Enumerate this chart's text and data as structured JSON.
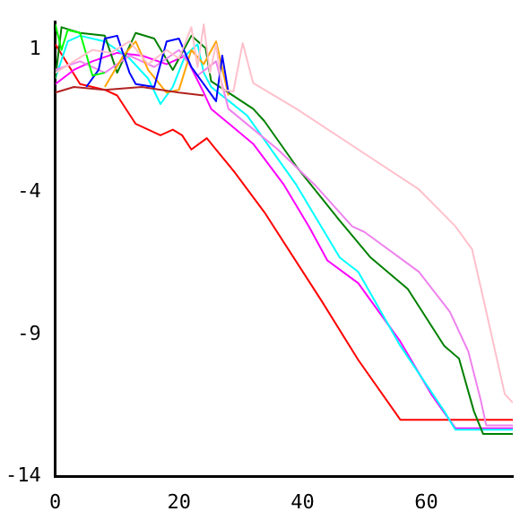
{
  "chart_data": {
    "type": "line",
    "xlim": [
      0,
      74
    ],
    "ylim": [
      -14,
      2
    ],
    "xticks": [
      0,
      20,
      40,
      60
    ],
    "yticks": [
      1,
      -4,
      -9,
      -14
    ],
    "grid": false,
    "legend": false,
    "marker": "none",
    "line_style": "solid",
    "series": [
      {
        "color": "#ffc0cb",
        "x": [
          0,
          3,
          6,
          9,
          12,
          15,
          18,
          20,
          22,
          23,
          24,
          25,
          26,
          27,
          28.8,
          30.3,
          32,
          39,
          49,
          58.8,
          64.7,
          67.4,
          69.7,
          72.7,
          74
        ],
        "values": [
          0.2,
          0.6,
          1.0,
          0.9,
          1.3,
          0.5,
          1.0,
          0.7,
          1.8,
          0.4,
          1.9,
          0.2,
          1.2,
          -0.4,
          -0.46,
          1.24,
          -0.16,
          -1.07,
          -2.5,
          -3.9,
          -5.2,
          -6.0,
          -8.2,
          -11.1,
          -11.4
        ]
      },
      {
        "color": "#00ff00",
        "x": [
          0,
          1,
          2,
          4,
          6,
          8
        ],
        "values": [
          1.9,
          1.0,
          1.7,
          1.6,
          0.1,
          0.2
        ]
      },
      {
        "color": "#b22222",
        "x": [
          0,
          3,
          8,
          14,
          20,
          24
        ],
        "values": [
          -0.5,
          -0.3,
          -0.4,
          -0.3,
          -0.5,
          -0.6
        ]
      },
      {
        "color": "#0000ff",
        "x": [
          5,
          7,
          8,
          10,
          12,
          13,
          16,
          18,
          20,
          22,
          26,
          27,
          28
        ],
        "values": [
          -0.3,
          0.3,
          1.4,
          1.5,
          0.2,
          -0.2,
          -0.3,
          1.3,
          1.4,
          0.4,
          -0.8,
          0.8,
          -0.5
        ]
      },
      {
        "color": "#ffa500",
        "x": [
          8,
          11,
          13,
          15,
          18,
          20,
          22,
          24,
          26,
          28
        ],
        "values": [
          -0.3,
          0.8,
          1.3,
          0.3,
          -0.5,
          -0.4,
          1.0,
          0.5,
          1.3,
          -0.6
        ]
      },
      {
        "color": "#ee82ee",
        "x": [
          0,
          4,
          8,
          12,
          16,
          20,
          23,
          26,
          28,
          36,
          42,
          48,
          50,
          58.8,
          63.8,
          66.8,
          68.8,
          69.7,
          74
        ],
        "values": [
          0.3,
          0.6,
          0.2,
          0.8,
          0.4,
          1.0,
          0.1,
          0.6,
          -1.07,
          -2.5,
          -3.75,
          -5.2,
          -5.4,
          -6.8,
          -8.2,
          -9.6,
          -11.3,
          -12.2,
          -12.2
        ]
      },
      {
        "color": "#008000",
        "x": [
          0,
          1,
          4,
          8,
          10,
          13,
          16,
          19,
          22,
          24.3,
          25.2,
          32,
          33.8,
          39,
          46,
          51,
          57,
          62.9,
          65.3,
          67.7,
          69.2,
          74
        ],
        "values": [
          0,
          1.8,
          1.6,
          1.5,
          0.2,
          1.6,
          1.4,
          0.3,
          1.5,
          1.06,
          -0.1,
          -1.07,
          -1.5,
          -3.1,
          -5.0,
          -6.3,
          -7.4,
          -9.4,
          -9.85,
          -11.7,
          -12.5,
          -12.5
        ]
      },
      {
        "color": "#00ffff",
        "x": [
          0,
          2,
          4,
          8,
          12,
          15,
          17,
          19,
          21,
          23,
          24,
          25.2,
          31,
          39,
          46,
          49,
          55.8,
          62.9,
          64.7,
          74
        ],
        "values": [
          0,
          1.3,
          1.5,
          1.3,
          0.7,
          0.0,
          -0.9,
          -0.3,
          0.8,
          1.2,
          0.2,
          -0.3,
          -1.3,
          -3.75,
          -6.3,
          -6.8,
          -9.4,
          -11.7,
          -12.35,
          -12.35
        ]
      },
      {
        "color": "#ff00ff",
        "x": [
          0,
          3,
          6,
          10,
          14,
          18,
          21,
          24,
          25.2,
          32,
          37,
          41,
          44,
          49,
          55.8,
          60.8,
          64.7,
          74
        ],
        "values": [
          -0.2,
          0.3,
          0.6,
          0.9,
          0.8,
          0.5,
          0.8,
          -0.5,
          -1.07,
          -2.3,
          -3.75,
          -5.2,
          -6.4,
          -7.2,
          -9.25,
          -11.1,
          -12.3,
          -12.3
        ]
      },
      {
        "color": "#ff0000",
        "x": [
          0,
          2,
          4,
          8,
          10,
          13,
          17,
          19,
          20.5,
          22,
          24.5,
          26,
          29,
          33.8,
          43,
          49,
          55.8,
          74
        ],
        "values": [
          1.2,
          0.5,
          -0.2,
          -0.4,
          -0.6,
          -1.6,
          -2.0,
          -1.8,
          -2.0,
          -2.5,
          -2.1,
          -2.5,
          -3.3,
          -4.7,
          -7.8,
          -9.9,
          -12.0,
          -12.0
        ]
      }
    ]
  }
}
